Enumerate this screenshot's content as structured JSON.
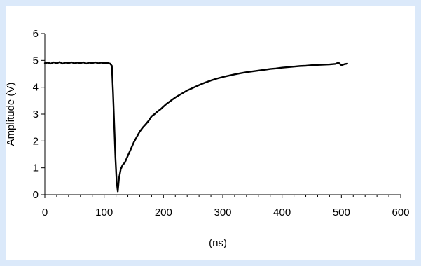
{
  "chart_data": {
    "type": "line",
    "title": "",
    "xlabel": "(ns)",
    "ylabel": "Amplitude (V)",
    "xlim": [
      0,
      600
    ],
    "ylim": [
      0,
      6
    ],
    "x_ticks": [
      "0",
      "100",
      "200",
      "300",
      "400",
      "500",
      "600"
    ],
    "y_ticks": [
      "0",
      "1",
      "2",
      "3",
      "4",
      "5",
      "6"
    ],
    "grid": false,
    "legend": "none",
    "line_color": "#000000",
    "series": [
      {
        "x": [
          0,
          5,
          10,
          15,
          20,
          25,
          30,
          35,
          40,
          45,
          50,
          55,
          60,
          65,
          70,
          75,
          80,
          85,
          90,
          95,
          100,
          105,
          110,
          113,
          115,
          117,
          119,
          121,
          123,
          125,
          128,
          131,
          135,
          140,
          145,
          150,
          155,
          160,
          165,
          170,
          175,
          180,
          185,
          190,
          195,
          200,
          205,
          210,
          215,
          220,
          230,
          240,
          250,
          260,
          270,
          280,
          290,
          300,
          310,
          320,
          330,
          340,
          350,
          360,
          370,
          380,
          390,
          400,
          410,
          420,
          430,
          440,
          450,
          460,
          470,
          480,
          490,
          495,
          500,
          505,
          510
        ],
        "y": [
          4.9,
          4.92,
          4.88,
          4.93,
          4.89,
          4.94,
          4.88,
          4.92,
          4.9,
          4.93,
          4.89,
          4.92,
          4.9,
          4.93,
          4.88,
          4.92,
          4.9,
          4.93,
          4.89,
          4.92,
          4.9,
          4.91,
          4.88,
          4.8,
          3.8,
          2.6,
          1.4,
          0.5,
          0.12,
          0.6,
          0.95,
          1.1,
          1.2,
          1.45,
          1.7,
          1.95,
          2.15,
          2.35,
          2.5,
          2.62,
          2.75,
          2.92,
          3.0,
          3.1,
          3.18,
          3.28,
          3.38,
          3.46,
          3.54,
          3.62,
          3.75,
          3.88,
          3.98,
          4.08,
          4.17,
          4.25,
          4.32,
          4.38,
          4.43,
          4.48,
          4.52,
          4.56,
          4.59,
          4.62,
          4.65,
          4.68,
          4.7,
          4.73,
          4.75,
          4.77,
          4.79,
          4.8,
          4.82,
          4.83,
          4.84,
          4.85,
          4.87,
          4.92,
          4.82,
          4.86,
          4.88
        ]
      }
    ]
  }
}
